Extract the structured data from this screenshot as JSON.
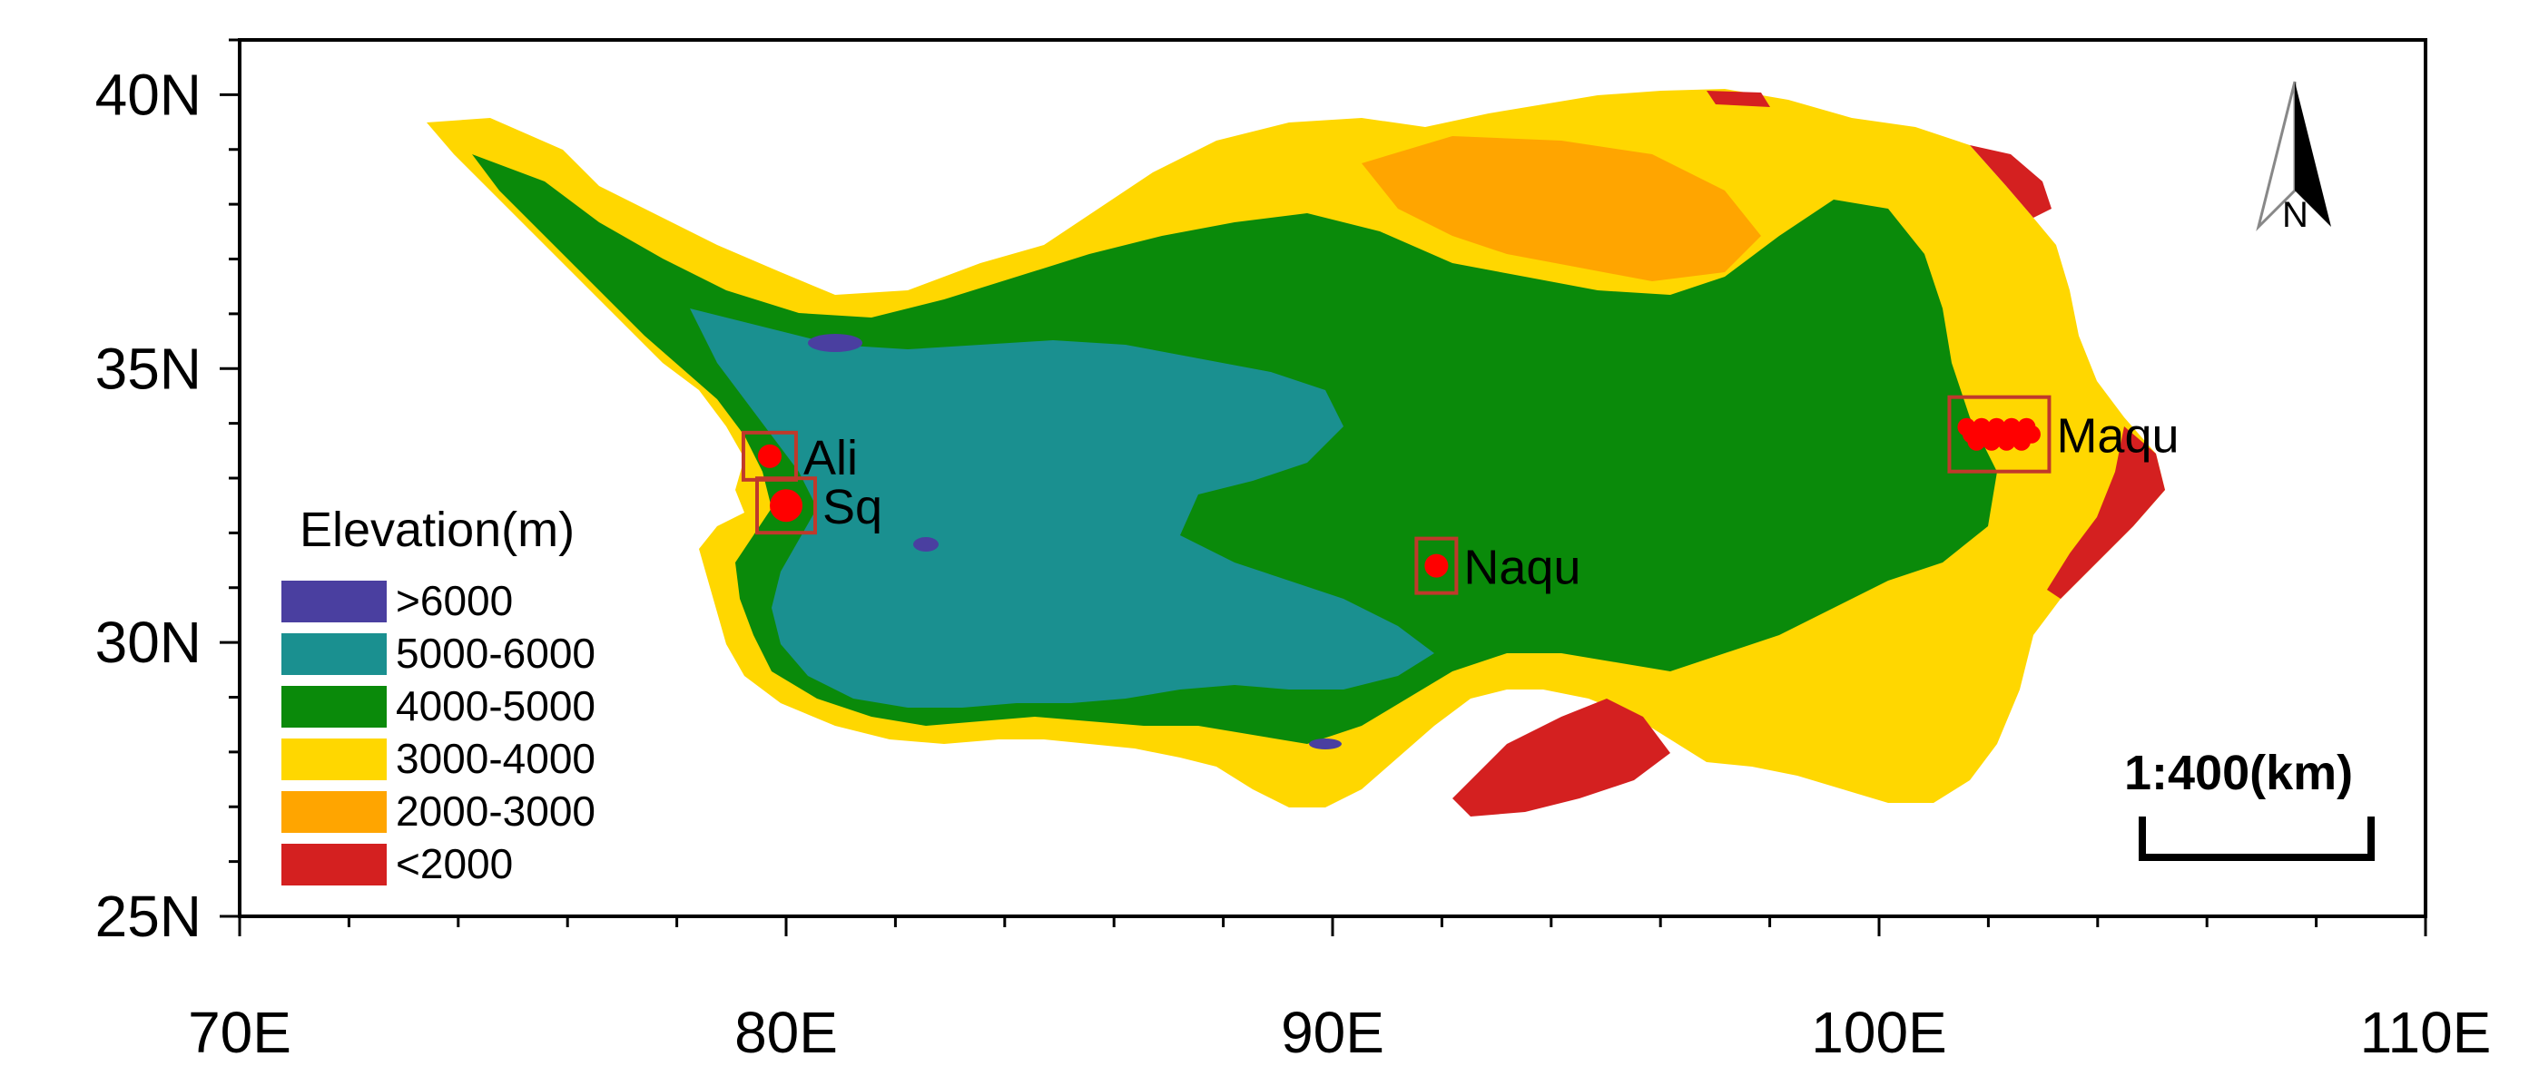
{
  "map": {
    "lon_range": [
      70,
      110
    ],
    "lat_range": [
      25,
      41
    ],
    "x_ticks": [
      {
        "value": 70,
        "label": "70E"
      },
      {
        "value": 80,
        "label": "80E"
      },
      {
        "value": 90,
        "label": "90E"
      },
      {
        "value": 100,
        "label": "100E"
      },
      {
        "value": 110,
        "label": "110E"
      }
    ],
    "y_ticks": [
      {
        "value": 40,
        "label": "40N"
      },
      {
        "value": 35,
        "label": "35N"
      },
      {
        "value": 30,
        "label": "30N"
      },
      {
        "value": 25,
        "label": "25N"
      }
    ],
    "colors": {
      "gt6000": "#4a3fa0",
      "r5000_6000": "#1a9090",
      "r4000_5000": "#0a8a0a",
      "r3000_4000": "#ffd700",
      "r2000_3000": "#ffa500",
      "lt2000": "#d42020",
      "site_marker": "#ff0000",
      "site_box": "#c0392b"
    }
  },
  "legend": {
    "title": "Elevation(m)",
    "items": [
      {
        "label": ">6000",
        "color": "#4a3fa0"
      },
      {
        "label": "5000-6000",
        "color": "#1a9090"
      },
      {
        "label": "4000-5000",
        "color": "#0a8a0a"
      },
      {
        "label": "3000-4000",
        "color": "#ffd700"
      },
      {
        "label": "2000-3000",
        "color": "#ffa500"
      },
      {
        "label": "<2000",
        "color": "#d42020"
      }
    ]
  },
  "sites": [
    {
      "name": "Ali",
      "lon": 79.7,
      "lat": 33.4
    },
    {
      "name": "Sq",
      "lon": 80.0,
      "lat": 32.5
    },
    {
      "name": "Naqu",
      "lon": 91.9,
      "lat": 31.4
    },
    {
      "name": "Maqu",
      "lon": 102.2,
      "lat": 33.8
    }
  ],
  "scale_bar": {
    "label": "1:400(km)"
  },
  "north_arrow": {
    "label": "N",
    "icon": "north-arrow-icon"
  }
}
